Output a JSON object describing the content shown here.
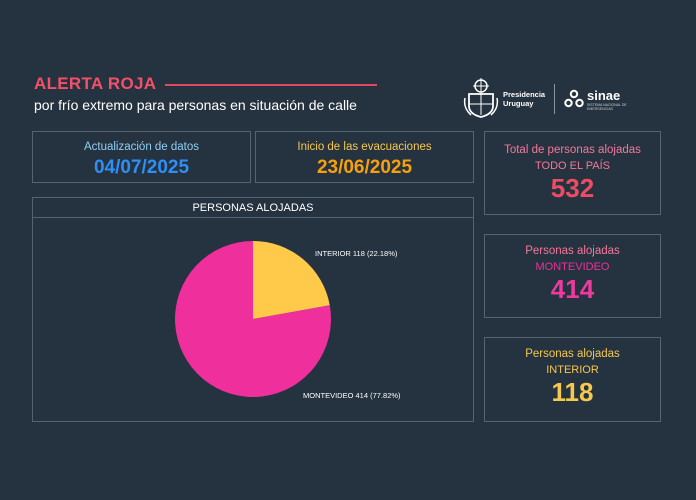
{
  "header": {
    "title": "ALERTA ROJA",
    "subtitle": "por frío extremo para personas en situación de calle"
  },
  "logos": {
    "presidencia_line1": "Presidencia",
    "presidencia_line2": "Uruguay",
    "sinae": "sinae",
    "sinae_subtitle": "SISTEMA NACIONAL DE EMERGENCIAS"
  },
  "update": {
    "label": "Actualización de datos",
    "value": "04/07/2025",
    "color": "#2f8ff5"
  },
  "evacuation": {
    "label": "Inicio de las evacuaciones",
    "value": "23/06/2025",
    "color": "#f5a10f"
  },
  "totals": [
    {
      "label": "Total de personas alojadas",
      "sub": "TODO EL PAÍS",
      "value": "532",
      "label_color": "#f4789a",
      "value_color": "#ee4c64"
    },
    {
      "label": "Personas alojadas",
      "sub": "MONTEVIDEO",
      "value": "414",
      "label_color": "#f4789a",
      "value_color": "#ee3aa0"
    },
    {
      "label": "Personas alojadas",
      "sub": "INTERIOR",
      "value": "118",
      "label_color": "#f5c84e",
      "value_color": "#f5c84e"
    }
  ],
  "chart_data": {
    "type": "pie",
    "title": "PERSONAS ALOJADAS",
    "slices": [
      {
        "name": "INTERIOR",
        "value": 118,
        "percent": 22.18,
        "label": "INTERIOR 118 (22.18%)",
        "color": "#ffc94a"
      },
      {
        "name": "MONTEVIDEO",
        "value": 414,
        "percent": 77.82,
        "label": "MONTEVIDEO 414 (77.82%)",
        "color": "#ef2f9c"
      }
    ]
  }
}
